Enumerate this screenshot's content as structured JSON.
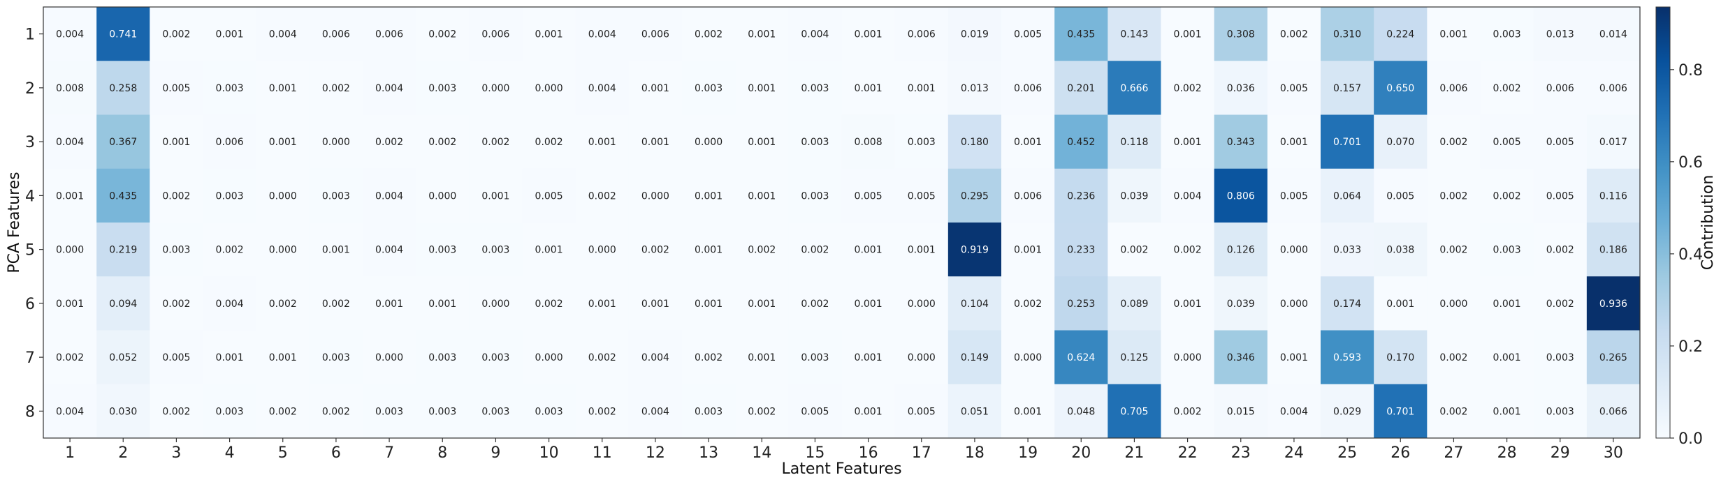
{
  "chart_data": {
    "type": "heatmap",
    "xlabel": "Latent Features",
    "ylabel": "PCA Features",
    "x_categories": [
      "1",
      "2",
      "3",
      "4",
      "5",
      "6",
      "7",
      "8",
      "9",
      "10",
      "11",
      "12",
      "13",
      "14",
      "15",
      "16",
      "17",
      "18",
      "19",
      "20",
      "21",
      "22",
      "23",
      "24",
      "25",
      "26",
      "27",
      "28",
      "29",
      "30"
    ],
    "y_categories": [
      "1",
      "2",
      "3",
      "4",
      "5",
      "6",
      "7",
      "8"
    ],
    "values": [
      [
        0.004,
        0.741,
        0.002,
        0.001,
        0.004,
        0.006,
        0.006,
        0.002,
        0.006,
        0.001,
        0.004,
        0.006,
        0.002,
        0.001,
        0.004,
        0.001,
        0.006,
        0.019,
        0.005,
        0.435,
        0.143,
        0.001,
        0.308,
        0.002,
        0.31,
        0.224,
        0.001,
        0.003,
        0.013,
        0.014
      ],
      [
        0.008,
        0.258,
        0.005,
        0.003,
        0.001,
        0.002,
        0.004,
        0.003,
        0.0,
        0.0,
        0.004,
        0.001,
        0.003,
        0.001,
        0.003,
        0.001,
        0.001,
        0.013,
        0.006,
        0.201,
        0.666,
        0.002,
        0.036,
        0.005,
        0.157,
        0.65,
        0.006,
        0.002,
        0.006,
        0.006
      ],
      [
        0.004,
        0.367,
        0.001,
        0.006,
        0.001,
        0.0,
        0.002,
        0.002,
        0.002,
        0.002,
        0.001,
        0.001,
        0.0,
        0.001,
        0.003,
        0.008,
        0.003,
        0.18,
        0.001,
        0.452,
        0.118,
        0.001,
        0.343,
        0.001,
        0.701,
        0.07,
        0.002,
        0.005,
        0.005,
        0.017
      ],
      [
        0.001,
        0.435,
        0.002,
        0.003,
        0.0,
        0.003,
        0.004,
        0.0,
        0.001,
        0.005,
        0.002,
        0.0,
        0.001,
        0.001,
        0.003,
        0.005,
        0.005,
        0.295,
        0.006,
        0.236,
        0.039,
        0.004,
        0.806,
        0.005,
        0.064,
        0.005,
        0.002,
        0.002,
        0.005,
        0.116
      ],
      [
        0.0,
        0.219,
        0.003,
        0.002,
        0.0,
        0.001,
        0.004,
        0.003,
        0.003,
        0.001,
        0.0,
        0.002,
        0.001,
        0.002,
        0.002,
        0.001,
        0.001,
        0.919,
        0.001,
        0.233,
        0.002,
        0.002,
        0.126,
        0.0,
        0.033,
        0.038,
        0.002,
        0.003,
        0.002,
        0.186
      ],
      [
        0.001,
        0.094,
        0.002,
        0.004,
        0.002,
        0.002,
        0.001,
        0.001,
        0.0,
        0.002,
        0.001,
        0.001,
        0.001,
        0.001,
        0.002,
        0.001,
        0.0,
        0.104,
        0.002,
        0.253,
        0.089,
        0.001,
        0.039,
        0.0,
        0.174,
        0.001,
        0.0,
        0.001,
        0.002,
        0.936
      ],
      [
        0.002,
        0.052,
        0.005,
        0.001,
        0.001,
        0.003,
        0.0,
        0.003,
        0.003,
        0.0,
        0.002,
        0.004,
        0.002,
        0.001,
        0.003,
        0.001,
        0.0,
        0.149,
        0.0,
        0.624,
        0.125,
        0.0,
        0.346,
        0.001,
        0.593,
        0.17,
        0.002,
        0.001,
        0.003,
        0.265
      ],
      [
        0.004,
        0.03,
        0.002,
        0.003,
        0.002,
        0.002,
        0.003,
        0.003,
        0.003,
        0.003,
        0.002,
        0.004,
        0.003,
        0.002,
        0.005,
        0.001,
        0.005,
        0.051,
        0.001,
        0.048,
        0.705,
        0.002,
        0.015,
        0.004,
        0.029,
        0.701,
        0.002,
        0.001,
        0.003,
        0.066
      ]
    ],
    "value_range": [
      0.0,
      0.936
    ],
    "colormap": "Blues",
    "colorbar": {
      "label": "Contribution",
      "ticks": [
        "0.0",
        "0.2",
        "0.4",
        "0.6",
        "0.8"
      ]
    },
    "grid": false,
    "legend": "none"
  }
}
